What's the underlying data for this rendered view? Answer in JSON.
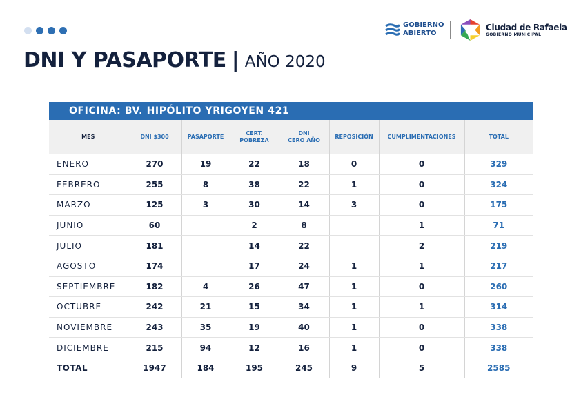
{
  "header": {
    "title": "DNI Y PASAPORTE",
    "separator": "|",
    "subtitle": "AÑO 2020",
    "gobierno_abierto_line1": "GOBIERNO",
    "gobierno_abierto_line2": "ABIERTO",
    "ciudad_name": "Ciudad de Rafaela",
    "ciudad_sub": "GOBIERNO MUNICIPAL",
    "colors": {
      "accent": "#2a6db3",
      "dark": "#14213d"
    }
  },
  "table": {
    "office": "OFICINA: BV. HIPÓLITO YRIGOYEN 421",
    "columns": [
      [
        "MES"
      ],
      [
        "DNI $300"
      ],
      [
        "PASAPORTE"
      ],
      [
        "CERT.",
        "POBREZA"
      ],
      [
        "DNI",
        "CERO AÑO"
      ],
      [
        "REPOSICIÓN"
      ],
      [
        "CUMPLIMENTACIONES"
      ],
      [
        "TOTAL"
      ]
    ],
    "rows": [
      [
        "ENERO",
        "270",
        "19",
        "22",
        "18",
        "0",
        "0",
        "329"
      ],
      [
        "FEBRERO",
        "255",
        "8",
        "38",
        "22",
        "1",
        "0",
        "324"
      ],
      [
        "MARZO",
        "125",
        "3",
        "30",
        "14",
        "3",
        "0",
        "175"
      ],
      [
        "JUNIO",
        "60",
        "",
        "2",
        "8",
        "",
        "1",
        "71"
      ],
      [
        "JULIO",
        "181",
        "",
        "14",
        "22",
        "",
        "2",
        "219"
      ],
      [
        "AGOSTO",
        "174",
        "",
        "17",
        "24",
        "1",
        "1",
        "217"
      ],
      [
        "SEPTIEMBRE",
        "182",
        "4",
        "26",
        "47",
        "1",
        "0",
        "260"
      ],
      [
        "OCTUBRE",
        "242",
        "21",
        "15",
        "34",
        "1",
        "1",
        "314"
      ],
      [
        "NOVIEMBRE",
        "243",
        "35",
        "19",
        "40",
        "1",
        "0",
        "338"
      ],
      [
        "DICIEMBRE",
        "215",
        "94",
        "12",
        "16",
        "1",
        "0",
        "338"
      ]
    ],
    "totals": [
      "TOTAL",
      "1947",
      "184",
      "195",
      "245",
      "9",
      "5",
      "2585"
    ]
  }
}
